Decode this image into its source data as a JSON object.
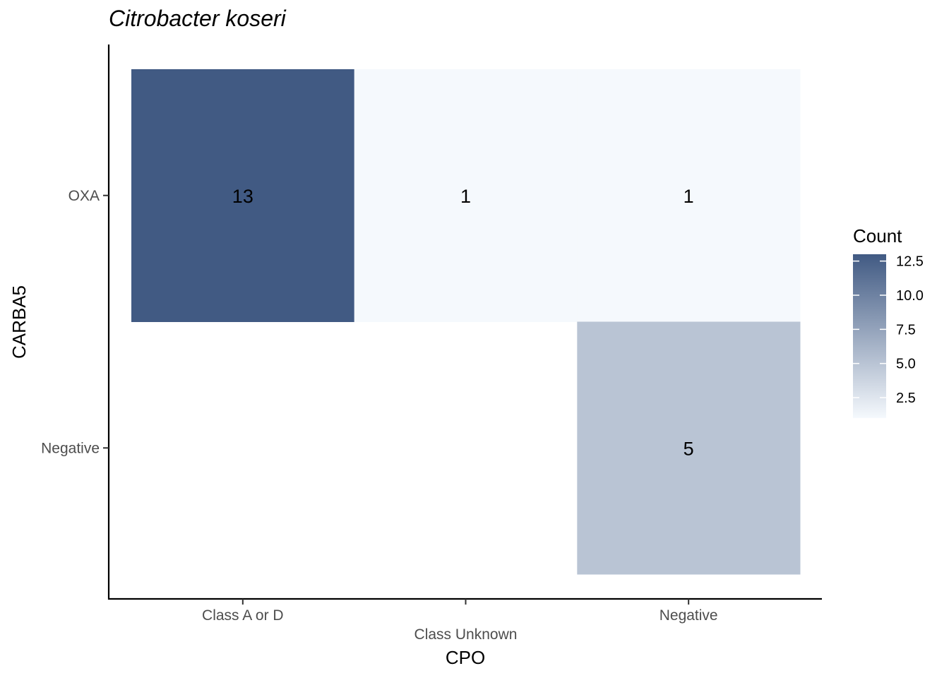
{
  "chart_data": {
    "type": "heatmap",
    "title": "Citrobacter koseri",
    "xlabel": "CPO",
    "ylabel": "CARBA5",
    "x_categories": [
      "Class A or D",
      "Class Unknown",
      "Negative"
    ],
    "y_categories": [
      "OXA",
      "Negative"
    ],
    "cells": [
      {
        "x": "Class A or D",
        "y": "OXA",
        "value": 13
      },
      {
        "x": "Class Unknown",
        "y": "OXA",
        "value": 1
      },
      {
        "x": "Negative",
        "y": "OXA",
        "value": 1
      },
      {
        "x": "Negative",
        "y": "Negative",
        "value": 5
      }
    ],
    "legend": {
      "title": "Count",
      "ticks": [
        2.5,
        5.0,
        7.5,
        10.0,
        12.5
      ],
      "tick_labels": [
        "2.5",
        "5.0",
        "7.5",
        "10.0",
        "12.5"
      ],
      "range": [
        1,
        13
      ],
      "low_color": "#f5f9fd",
      "high_color": "#415a83"
    },
    "grid": false,
    "legend_position": "right"
  }
}
